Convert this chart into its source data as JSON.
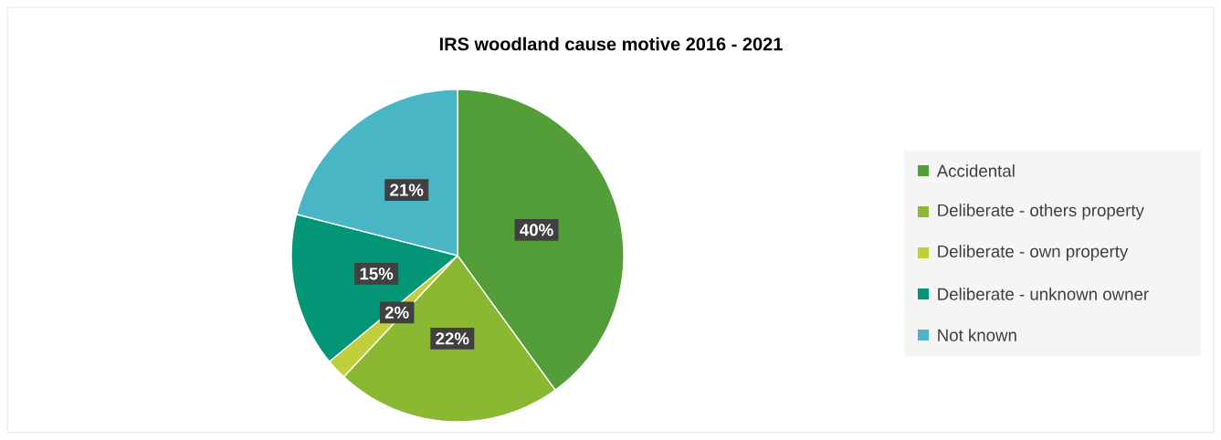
{
  "chart_data": {
    "type": "pie",
    "title": "IRS woodland cause motive 2016 - 2021",
    "categories": [
      "Accidental",
      "Deliberate - others property",
      "Deliberate - own property",
      "Deliberate - unknown owner",
      "Not known"
    ],
    "values": [
      40,
      22,
      2,
      15,
      21
    ],
    "colors": [
      "#549e39",
      "#8ab833",
      "#c0cf3a",
      "#029676",
      "#4ab5c4"
    ],
    "value_labels": [
      "40%",
      "22%",
      "2%",
      "15%",
      "21%"
    ],
    "legend": "right"
  }
}
